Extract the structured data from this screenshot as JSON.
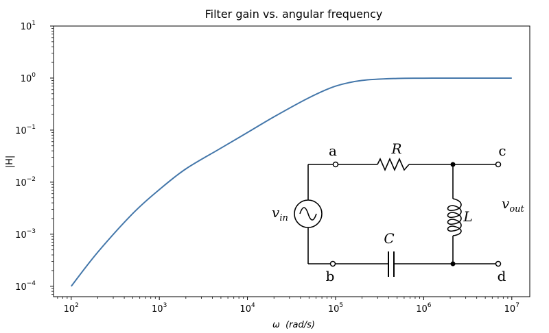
{
  "chart_data": {
    "type": "line",
    "title": "Filter gain vs. angular frequency",
    "xlabel": {
      "symbol": "ω",
      "unit": "(rad/s)"
    },
    "ylabel": "|H|",
    "xscale": "log",
    "yscale": "log",
    "xlim": [
      63,
      16000000
    ],
    "ylim": [
      6.3e-05,
      10
    ],
    "x_ticks": [
      {
        "base": "10",
        "exp": "2",
        "value": 100
      },
      {
        "base": "10",
        "exp": "3",
        "value": 1000
      },
      {
        "base": "10",
        "exp": "4",
        "value": 10000
      },
      {
        "base": "10",
        "exp": "5",
        "value": 100000
      },
      {
        "base": "10",
        "exp": "6",
        "value": 1000000
      },
      {
        "base": "10",
        "exp": "7",
        "value": 10000000
      }
    ],
    "y_ticks": [
      {
        "base": "10",
        "exp": "−4",
        "value": 0.0001
      },
      {
        "base": "10",
        "exp": "−3",
        "value": 0.001
      },
      {
        "base": "10",
        "exp": "−2",
        "value": 0.01
      },
      {
        "base": "10",
        "exp": "−1",
        "value": 0.1
      },
      {
        "base": "10",
        "exp": "0",
        "value": 1
      },
      {
        "base": "10",
        "exp": "1",
        "value": 10
      }
    ],
    "series": [
      {
        "name": "|H|",
        "color": "#4477aa",
        "x": [
          100,
          200,
          500,
          1000,
          2000,
          5000,
          10000,
          20000,
          50000,
          100000,
          200000,
          500000,
          1000000,
          2000000,
          5000000,
          10000000
        ],
        "y": [
          0.0001,
          0.00045,
          0.0025,
          0.0072,
          0.018,
          0.045,
          0.09,
          0.18,
          0.42,
          0.7,
          0.9,
          0.985,
          0.995,
          0.998,
          0.999,
          1.0
        ]
      }
    ]
  },
  "circuit": {
    "nodes": {
      "a": "a",
      "b": "b",
      "c": "c",
      "d": "d"
    },
    "components": {
      "resistor": "R",
      "inductor": "L",
      "capacitor": "C"
    },
    "source": {
      "symbol": "v",
      "sub": "in"
    },
    "output": {
      "symbol": "v",
      "sub": "out"
    }
  }
}
